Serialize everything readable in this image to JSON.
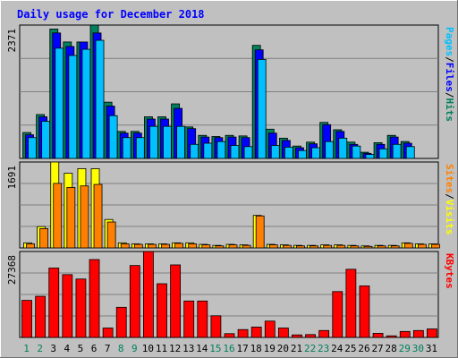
{
  "chart_data": {
    "type": "bar",
    "title": "Daily usage for December 2018",
    "colors": {
      "background": "#c0c0c0",
      "plot_bg": "#c0c0c0",
      "title": "#0000ff",
      "hits": "#00805c",
      "files": "#0000ff",
      "pages": "#00c0ff",
      "visits": "#ffff00",
      "sites": "#ff8000",
      "kbytes": "#ff0000",
      "weekday": "#000000",
      "weekend": "#00805c",
      "grid": "#808080"
    },
    "days": [
      "1",
      "2",
      "3",
      "4",
      "5",
      "6",
      "7",
      "8",
      "9",
      "10",
      "11",
      "12",
      "13",
      "14",
      "15",
      "16",
      "17",
      "18",
      "19",
      "20",
      "21",
      "22",
      "23",
      "24",
      "25",
      "26",
      "27",
      "28",
      "29",
      "30",
      "31"
    ],
    "weekend_days": [
      "1",
      "2",
      "8",
      "9",
      "15",
      "16",
      "22",
      "23",
      "29",
      "30"
    ],
    "panels": [
      {
        "id": "hits",
        "max_label": "2371",
        "legend": [
          {
            "text": "Pages",
            "color": "#00c0ff"
          },
          {
            "text": "/",
            "color": "#000000"
          },
          {
            "text": "Files",
            "color": "#0000ff"
          },
          {
            "text": "/",
            "color": "#000000"
          },
          {
            "text": "Hits",
            "color": "#00805c"
          }
        ],
        "series": [
          {
            "name": "Hits",
            "color": "#00805c",
            "values": [
              460,
              780,
              2300,
              2070,
              2070,
              2371,
              1000,
              480,
              480,
              740,
              740,
              970,
              560,
              410,
              390,
              410,
              400,
              2010,
              520,
              360,
              220,
              290,
              640,
              510,
              290,
              110,
              280,
              410,
              300,
              0,
              0
            ]
          },
          {
            "name": "Files",
            "color": "#0000ff",
            "values": [
              420,
              740,
              2230,
              1990,
              2070,
              2230,
              930,
              450,
              450,
              700,
              700,
              890,
              530,
              380,
              370,
              380,
              370,
              1930,
              450,
              320,
              190,
              260,
              600,
              480,
              250,
              90,
              250,
              380,
              270,
              0,
              0
            ]
          },
          {
            "name": "Pages",
            "color": "#00c0ff",
            "values": [
              370,
              660,
              1960,
              1830,
              1940,
              2100,
              760,
              370,
              370,
              570,
              570,
              570,
              250,
              270,
              300,
              230,
              210,
              1760,
              230,
              200,
              140,
              190,
              300,
              360,
              220,
              70,
              170,
              250,
              210,
              0,
              0
            ]
          }
        ]
      },
      {
        "id": "visits",
        "max_label": "1691",
        "legend": [
          {
            "text": "Sites",
            "color": "#ff8000"
          },
          {
            "text": "/",
            "color": "#000000"
          },
          {
            "text": "Visits",
            "color": "#ffff00"
          }
        ],
        "series": [
          {
            "name": "Visits",
            "color": "#ffff00",
            "values": [
              100,
              420,
              1691,
              1470,
              1560,
              1560,
              560,
              100,
              80,
              80,
              80,
              100,
              100,
              70,
              50,
              70,
              60,
              640,
              70,
              60,
              50,
              50,
              60,
              60,
              50,
              40,
              50,
              50,
              100,
              80,
              80
            ]
          },
          {
            "name": "Sites",
            "color": "#ff8000",
            "values": [
              80,
              380,
              1270,
              1190,
              1220,
              1250,
              510,
              80,
              70,
              70,
              70,
              90,
              80,
              60,
              40,
              60,
              50,
              630,
              60,
              50,
              40,
              40,
              50,
              50,
              40,
              30,
              40,
              40,
              90,
              70,
              70
            ]
          }
        ]
      },
      {
        "id": "kbytes",
        "max_label": "27368",
        "legend": [
          {
            "text": "KBytes",
            "color": "#ff0000"
          }
        ],
        "series": [
          {
            "name": "KBytes",
            "color": "#ff0000",
            "values": [
              11800,
              13100,
              22100,
              20000,
              18600,
              24800,
              3000,
              9600,
              22900,
              27368,
              17100,
              23100,
              11600,
              11600,
              6900,
              1200,
              2500,
              3300,
              5200,
              3000,
              800,
              900,
              2200,
              14600,
              21700,
              16400,
              1300,
              500,
              1900,
              2200,
              2700
            ]
          }
        ]
      }
    ]
  }
}
